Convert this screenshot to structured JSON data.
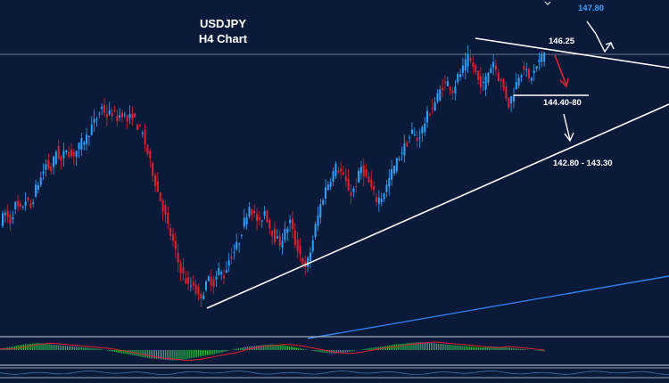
{
  "chart_data": {
    "type": "candlestick",
    "title": "USDJPY",
    "subtitle": "H4 Chart",
    "colors": {
      "background": "#0c1a3a",
      "bullish": "#2aa3ff",
      "bearish": "#e0202e",
      "trendline": "#ffffff",
      "long_trendline": "#2f7fe8",
      "osc_positive": "#27b84a",
      "osc_signal": "#e0202e",
      "target_label": "#3aa0ff"
    },
    "annotations": {
      "target_high": "147.80",
      "resistance": "146.25",
      "support_zone": "144.40-80",
      "support_target": "142.80 - 143.30"
    },
    "close_path": [
      143.0,
      143.3,
      143.0,
      143.6,
      143.4,
      143.8,
      143.5,
      144.2,
      144.6,
      145.1,
      144.9,
      145.6,
      145.2,
      145.7,
      145.4,
      145.6,
      145.9,
      146.1,
      146.5,
      146.8,
      147.2,
      146.9,
      147.0,
      146.8,
      147.0,
      146.7,
      146.9,
      146.5,
      146.2,
      145.5,
      144.8,
      144.1,
      143.5,
      142.8,
      142.2,
      141.5,
      141.0,
      140.6,
      140.7,
      140.2,
      140.4,
      140.9,
      140.7,
      141.2,
      141.0,
      141.6,
      141.9,
      142.3,
      143.0,
      143.6,
      143.2,
      142.9,
      143.4,
      142.8,
      142.4,
      142.2,
      142.6,
      143.0,
      142.2,
      141.8,
      141.2,
      141.9,
      142.8,
      143.6,
      144.2,
      144.6,
      145.0,
      144.8,
      144.4,
      144.0,
      144.4,
      145.0,
      144.6,
      144.2,
      143.8,
      143.9,
      144.3,
      144.8,
      145.2,
      145.6,
      145.9,
      146.3,
      146.0,
      146.4,
      146.9,
      147.2,
      147.6,
      148.0,
      148.1,
      147.8,
      148.3,
      148.6,
      149.0,
      148.7,
      148.2,
      148.0,
      148.5,
      148.9,
      148.3,
      147.9,
      147.3,
      147.8,
      148.4,
      148.7,
      148.2,
      148.5,
      148.9,
      149.2
    ],
    "oscillator": [
      0.1,
      0.3,
      0.5,
      0.6,
      0.5,
      0.4,
      0.3,
      0.2,
      0.1,
      -0.1,
      -0.3,
      -0.5,
      -0.7,
      -0.8,
      -0.9,
      -0.8,
      -0.6,
      -0.4,
      -0.2,
      0.1,
      0.3,
      0.4,
      0.5,
      0.4,
      0.2,
      0.0,
      -0.2,
      -0.3,
      -0.2,
      0.0,
      0.2,
      0.3,
      0.5,
      0.6,
      0.7,
      0.6,
      0.5,
      0.4,
      0.3,
      0.2,
      0.3,
      0.2,
      0.1,
      0.0,
      -0.1
    ]
  }
}
